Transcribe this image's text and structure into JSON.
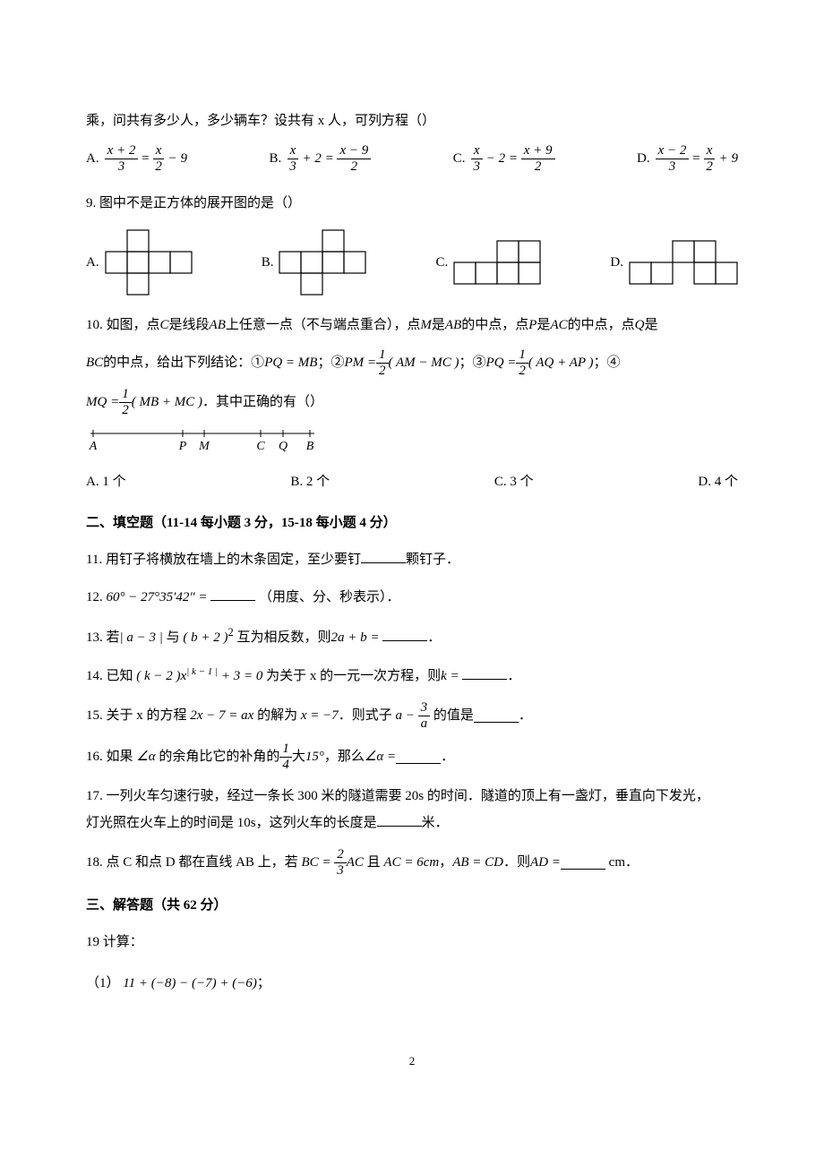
{
  "q8": {
    "stem": "乘，问共有多少人，多少辆车？设共有 x 人，可列方程（）",
    "A": {
      "label": "A.",
      "lhs_num": "x + 2",
      "lhs_den": "3",
      "rhs_num": "x",
      "rhs_den": "2",
      "tail": "− 9"
    },
    "B": {
      "label": "B.",
      "lhs_num": "x",
      "lhs_den": "3",
      "mid": "+ 2 =",
      "rhs_num": "x − 9",
      "rhs_den": "2"
    },
    "C": {
      "label": "C.",
      "lhs_num": "x",
      "lhs_den": "3",
      "mid": "− 2 =",
      "rhs_num": "x + 9",
      "rhs_den": "2"
    },
    "D": {
      "label": "D.",
      "lhs_num": "x − 2",
      "lhs_den": "3",
      "rhs_num": "x",
      "rhs_den": "2",
      "tail": "+ 9"
    }
  },
  "q9": {
    "stem": "9. 图中不是正方体的展开图的是（）",
    "A": "A.",
    "B": "B.",
    "C": "C.",
    "D": "D.",
    "cell": 24,
    "stroke": "#000000",
    "netA": [
      [
        1,
        0
      ],
      [
        0,
        1
      ],
      [
        1,
        1
      ],
      [
        2,
        1
      ],
      [
        3,
        1
      ],
      [
        1,
        2
      ]
    ],
    "netB": [
      [
        2,
        0
      ],
      [
        0,
        1
      ],
      [
        1,
        1
      ],
      [
        2,
        1
      ],
      [
        3,
        1
      ],
      [
        1,
        2
      ]
    ],
    "netC": [
      [
        2,
        0
      ],
      [
        3,
        0
      ],
      [
        0,
        1
      ],
      [
        1,
        1
      ],
      [
        2,
        1
      ],
      [
        3,
        1
      ]
    ],
    "netD": [
      [
        2,
        0
      ],
      [
        3,
        0
      ],
      [
        0,
        1
      ],
      [
        1,
        1
      ],
      [
        3,
        1
      ],
      [
        4,
        1
      ]
    ]
  },
  "q10": {
    "line1_a": "10. 如图，点 ",
    "line1_b": " 是线段 ",
    "line1_c": " 上任意一点（不与端点重合），点 ",
    "line1_d": " 是 ",
    "line1_e": " 的中点，点 ",
    "line1_f": " 是 ",
    "line1_g": " 的中点，点 ",
    "line1_h": " 是",
    "C": "C",
    "AB": "AB",
    "M": "M",
    "P": "P",
    "AC": "AC",
    "Q": "Q",
    "line2_a": " 的中点，给出下列结论：① ",
    "line2_b": "；② ",
    "line2_c": "；③ ",
    "line2_d": "；④",
    "BC": "BC",
    "eq1": "PQ = MB",
    "eq2_lhs": "PM = ",
    "eq2_frac_num": "1",
    "eq2_frac_den": "2",
    "eq2_paren": "( AM − MC )",
    "eq3_lhs": "PQ = ",
    "eq3_frac_num": "1",
    "eq3_frac_den": "2",
    "eq3_paren": "( AQ + AP )",
    "eq4_lhs": "MQ = ",
    "eq4_frac_num": "1",
    "eq4_frac_den": "2",
    "eq4_paren": "( MB + MC )",
    "line3_tail": "．其中正确的有（）",
    "labels": {
      "A": "A",
      "P": "P",
      "M": "M",
      "C": "C",
      "Q": "Q",
      "B": "B"
    },
    "optA": "A. 1 个",
    "optB": "B. 2 个",
    "optC": "C. 3 个",
    "optD": "D. 4 个"
  },
  "section2_title": "二、填空题（11-14 每小题 3 分，15-18 每小题 4 分）",
  "q11": {
    "pre": "11. 用钉子将横放在墙上的木条固定，至少要钉",
    "post": "颗钉子．"
  },
  "q12": {
    "pre": "12. ",
    "expr": "60° − 27°35′42″ =",
    "post": "（用度、分、秒表示）．"
  },
  "q13": {
    "pre": "13. 若",
    "abs": "| a − 3 |",
    "mid1": "与",
    "paren": "( b + 2 )",
    "sup": "2",
    "mid2": "互为相反数，则",
    "expr": "2a + b =",
    "post": "．"
  },
  "q14": {
    "pre": "14. 已知",
    "paren": "( k − 2 )",
    "x": "x",
    "exp": "| k − 1 |",
    "plus3": "+ 3 = 0",
    "mid": "为关于 x 的一元一次方程，则",
    "keq": "k =",
    "post": "．"
  },
  "q15": {
    "pre": "15. 关于 x 的方程",
    "eq": "2x − 7 = ax",
    "mid1": "的解为",
    "xval": "x = −7",
    "mid2": "．则式子",
    "a": "a −",
    "fnum": "3",
    "fden": "a",
    "mid3": "的值是",
    "post": "．"
  },
  "q16": {
    "pre": "16. 如果",
    "ang": "∠α",
    "mid1": "的余角比它的补角的",
    "fnum": "1",
    "fden": "4",
    "mid2": "大",
    "deg": "15°",
    "mid3": "，那么",
    "ang2": "∠α =",
    "post": "．"
  },
  "q17": {
    "text1": "17. 一列火车匀速行驶，经过一条长 300 米的隧道需要 20s 的时间．隧道的顶上有一盏灯，垂直向下发光，",
    "text2": "灯光照在火车上的时间是 10s，这列火车的长度是",
    "post": "米．"
  },
  "q18": {
    "pre": "18. 点 C 和点 D 都在直线 AB 上，若",
    "bc": "BC =",
    "fnum": "2",
    "fden": "3",
    "ac": "AC",
    "mid1": "且",
    "ac6": "AC = 6cm",
    "comma": "，",
    "abcd": "AB = CD",
    "mid2": "．则",
    "ad": "AD =",
    "unit": "cm",
    "post": "．"
  },
  "section3_title": "三、解答题（共 62 分）",
  "q19": {
    "title": "19 计算：",
    "sub1": "（1）",
    "expr1": "11 + (−8) − (−7) + (−6)",
    "semi": "；"
  },
  "page_number": "2"
}
